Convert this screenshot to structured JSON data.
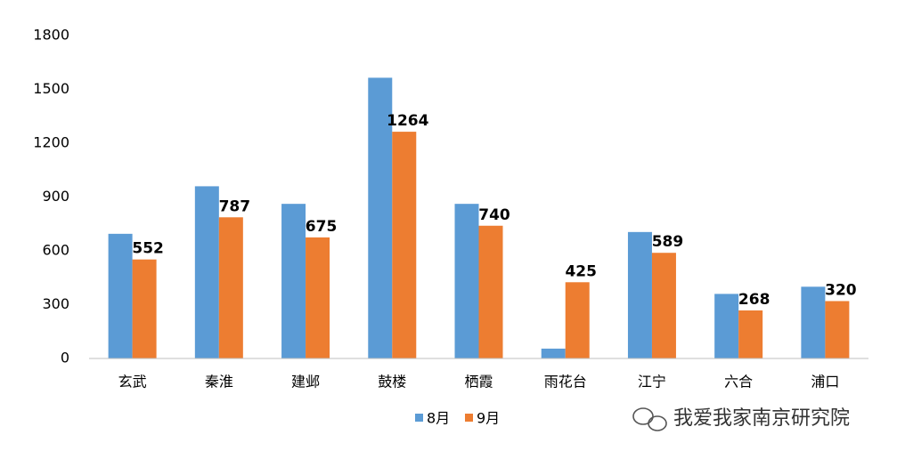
{
  "chart_data": {
    "type": "bar",
    "categories": [
      "玄武",
      "秦淮",
      "建邺",
      "鼓楼",
      "栖霞",
      "雨花台",
      "江宁",
      "六合",
      "浦口"
    ],
    "series": [
      {
        "name": "8月",
        "color": "#5b9bd5",
        "data_labels": false,
        "values": [
          695,
          960,
          862,
          1565,
          862,
          55,
          705,
          360,
          400
        ]
      },
      {
        "name": "9月",
        "color": "#ed7d31",
        "data_labels": true,
        "values": [
          552,
          787,
          675,
          1264,
          740,
          425,
          589,
          268,
          320
        ]
      }
    ],
    "ylim": [
      0,
      1800
    ],
    "yticks": [
      0,
      300,
      600,
      900,
      1200,
      1500,
      1800
    ],
    "grid": false,
    "legend": "bottom",
    "watermark": "我爱我家南京研究院"
  }
}
